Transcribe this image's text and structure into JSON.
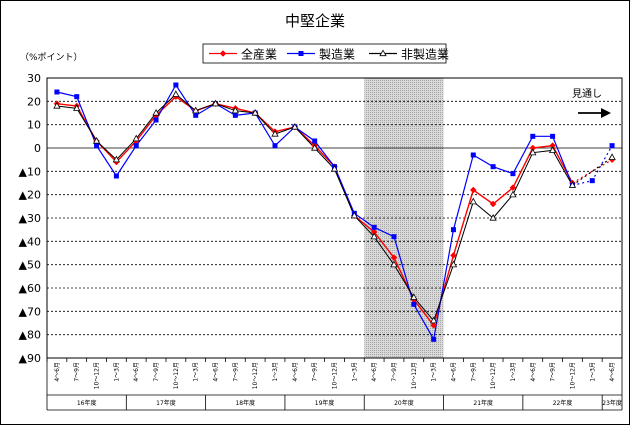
{
  "chart_data": {
    "type": "line",
    "title": "中堅企業",
    "ylabel": "（%ポイント）",
    "forecast_label": "見通し",
    "ylim": [
      -90,
      30
    ],
    "yticks": [
      30,
      20,
      10,
      0,
      -10,
      -20,
      -30,
      -40,
      -50,
      -60,
      -70,
      -80,
      -90
    ],
    "ytick_labels": [
      "30",
      "20",
      "10",
      "0",
      "▲10",
      "▲20",
      "▲30",
      "▲40",
      "▲50",
      "▲60",
      "▲70",
      "▲80",
      "▲90"
    ],
    "categories": [
      "4～6月",
      "7～9月",
      "10～12月",
      "1～3月",
      "4～6月",
      "7～9月",
      "10～12月",
      "1～3月",
      "4～6月",
      "7～9月",
      "10～12月",
      "1～3月",
      "4～6月",
      "7～9月",
      "10～12月",
      "1～3月",
      "4～6月",
      "7～9月",
      "10～12月",
      "1～3月",
      "4～6月",
      "7～9月",
      "10～12月",
      "1～3月",
      "4～6月",
      "7～9月",
      "10～12月",
      "1～3月",
      "4～6月"
    ],
    "year_groups": [
      {
        "label": "16年度",
        "start": 0,
        "count": 4
      },
      {
        "label": "17年度",
        "start": 4,
        "count": 4
      },
      {
        "label": "18年度",
        "start": 8,
        "count": 4
      },
      {
        "label": "19年度",
        "start": 12,
        "count": 4
      },
      {
        "label": "20年度",
        "start": 16,
        "count": 4
      },
      {
        "label": "21年度",
        "start": 20,
        "count": 4
      },
      {
        "label": "22年度",
        "start": 24,
        "count": 4
      },
      {
        "label": "23年度",
        "start": 28,
        "count": 1
      }
    ],
    "shaded_range": [
      15.5,
      19.5
    ],
    "actual_end_index": 26,
    "series": [
      {
        "name": "全産業",
        "color": "#ff0000",
        "marker": "diamond",
        "values": [
          19,
          18,
          3,
          -6,
          3,
          14,
          22,
          16,
          19,
          17,
          15,
          7,
          9,
          1,
          -8,
          -29,
          -36,
          -47,
          -65,
          -76,
          -46,
          -18,
          -24,
          -17,
          0,
          1,
          -15,
          null,
          -5
        ]
      },
      {
        "name": "製造業",
        "color": "#0000ff",
        "marker": "square",
        "values": [
          24,
          22,
          1,
          -12,
          1,
          12,
          27,
          14,
          19,
          14,
          15,
          1,
          9,
          3,
          -8,
          -28,
          -34,
          -38,
          -67,
          -82,
          -35,
          -3,
          -8,
          -11,
          5,
          5,
          -16,
          -14,
          1
        ]
      },
      {
        "name": "非製造業",
        "color": "#000000",
        "marker": "triangle",
        "values": [
          18,
          17,
          3,
          -5,
          4,
          15,
          23,
          16,
          19,
          16,
          15,
          6,
          9,
          0,
          -9,
          -29,
          -38,
          -50,
          -64,
          -74,
          -50,
          -23,
          -30,
          -20,
          -2,
          -1,
          -16,
          null,
          -4
        ]
      }
    ]
  }
}
